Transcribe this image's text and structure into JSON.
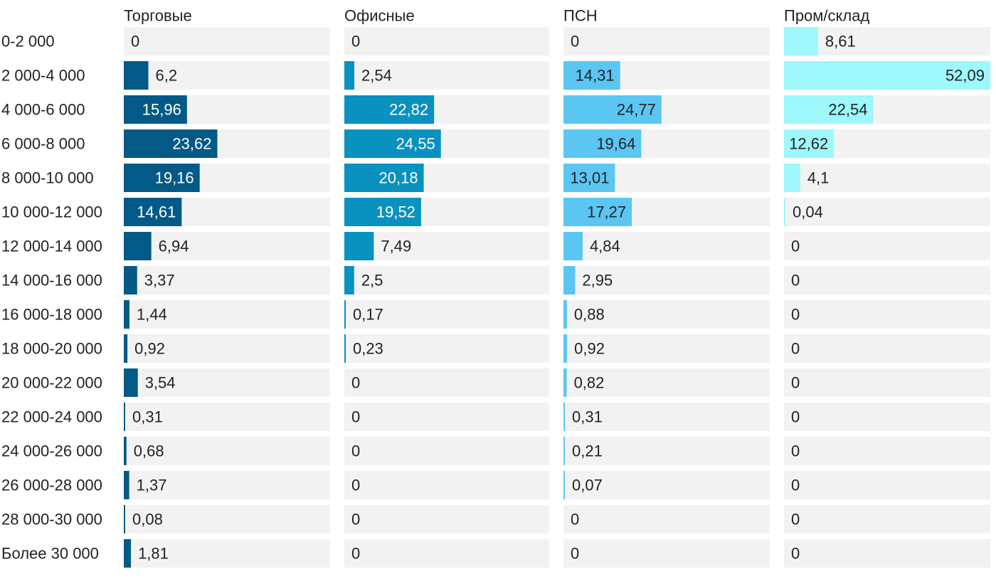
{
  "chart_data": {
    "type": "bar",
    "orientation": "horizontal",
    "layout": "small-multiples",
    "xlim": [
      0,
      52.09
    ],
    "grid": false,
    "categories": [
      "0-2 000",
      "2 000-4 000",
      "4 000-6 000",
      "6 000-8 000",
      "8 000-10 000",
      "10 000-12 000",
      "12 000-14 000",
      "14 000-16 000",
      "16 000-18 000",
      "18 000-20 000",
      "20 000-22 000",
      "22 000-24 000",
      "24 000-26 000",
      "26 000-28 000",
      "28 000-30 000",
      "Более 30 000"
    ],
    "series": [
      {
        "name": "Торговые",
        "color": "#045a86",
        "values": [
          0,
          6.2,
          15.96,
          23.62,
          19.16,
          14.61,
          6.94,
          3.37,
          1.44,
          0.92,
          3.54,
          0.31,
          0.68,
          1.37,
          0.08,
          1.81
        ],
        "labels": [
          "0",
          "6,2",
          "15,96",
          "23,62",
          "19,16",
          "14,61",
          "6,94",
          "3,37",
          "1,44",
          "0,92",
          "3,54",
          "0,31",
          "0,68",
          "1,37",
          "0,08",
          "1,81"
        ]
      },
      {
        "name": "Офисные",
        "color": "#0991c0",
        "values": [
          0,
          2.54,
          22.82,
          24.55,
          20.18,
          19.52,
          7.49,
          2.5,
          0.17,
          0.23,
          0,
          0,
          0,
          0,
          0,
          0
        ],
        "labels": [
          "0",
          "2,54",
          "22,82",
          "24,55",
          "20,18",
          "19,52",
          "7,49",
          "2,5",
          "0,17",
          "0,23",
          "0",
          "0",
          "0",
          "0",
          "0",
          "0"
        ]
      },
      {
        "name": "ПСН",
        "color": "#5bc6f2",
        "values": [
          0,
          14.31,
          24.77,
          19.64,
          13.01,
          17.27,
          4.84,
          2.95,
          0.88,
          0.92,
          0.82,
          0.31,
          0.21,
          0.07,
          0,
          0
        ],
        "labels": [
          "0",
          "14,31",
          "24,77",
          "19,64",
          "13,01",
          "17,27",
          "4,84",
          "2,95",
          "0,88",
          "0,92",
          "0,82",
          "0,31",
          "0,21",
          "0,07",
          "0",
          "0"
        ]
      },
      {
        "name": "Пром/склад",
        "color": "#9df7fb",
        "values": [
          8.61,
          52.09,
          22.54,
          12.62,
          4.1,
          0.04,
          0,
          0,
          0,
          0,
          0,
          0,
          0,
          0,
          0,
          0
        ],
        "labels": [
          "8,61",
          "52,09",
          "22,54",
          "12,62",
          "4,1",
          "0,04",
          "0",
          "0",
          "0",
          "0",
          "0",
          "0",
          "0",
          "0",
          "0",
          "0"
        ]
      }
    ]
  }
}
